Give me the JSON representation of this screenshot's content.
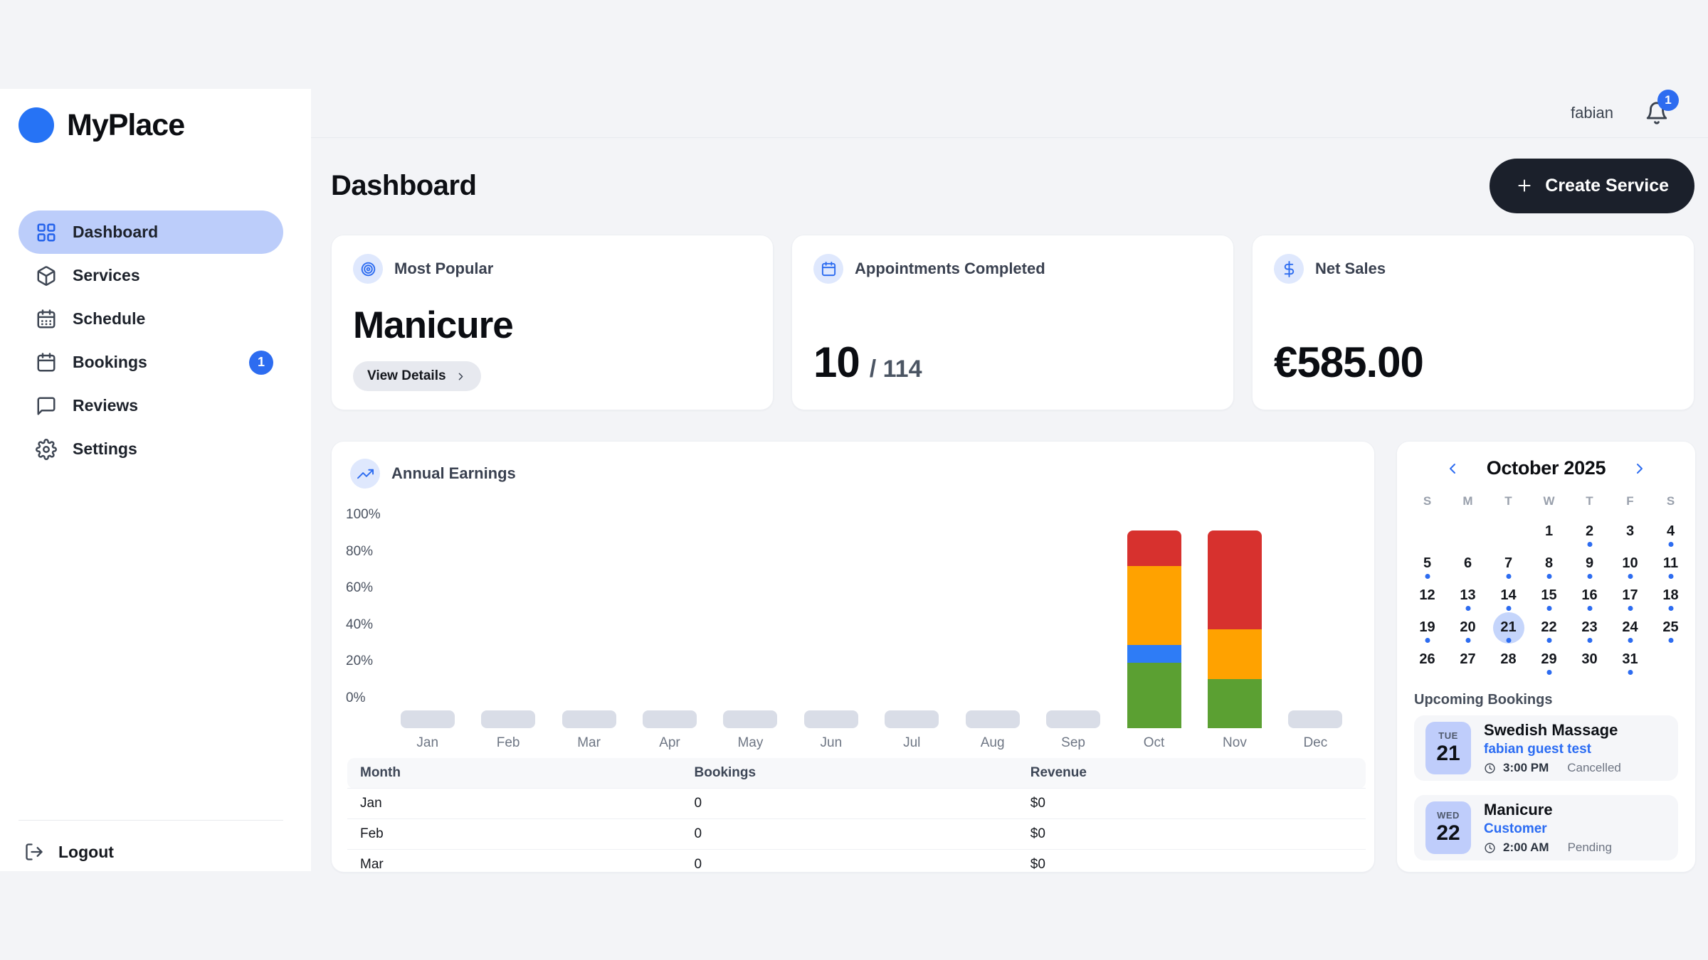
{
  "brand": {
    "name": "MyPlace"
  },
  "topbar": {
    "username": "fabian",
    "notification_count": "1"
  },
  "sidebar": {
    "items": [
      {
        "label": "Dashboard",
        "icon": "dashboard-grid",
        "active": true
      },
      {
        "label": "Services",
        "icon": "package"
      },
      {
        "label": "Schedule",
        "icon": "calendar-dots"
      },
      {
        "label": "Bookings",
        "icon": "calendar",
        "badge": "1"
      },
      {
        "label": "Reviews",
        "icon": "chat"
      },
      {
        "label": "Settings",
        "icon": "gear"
      }
    ],
    "logout_label": "Logout"
  },
  "page": {
    "title": "Dashboard",
    "create_button": "Create Service"
  },
  "stats": [
    {
      "icon": "target",
      "label": "Most Popular",
      "value": "Manicure",
      "button": "View Details"
    },
    {
      "icon": "calendar",
      "label": "Appointments Completed",
      "value": "10",
      "total": "/ 114"
    },
    {
      "icon": "dollar",
      "label": "Net Sales",
      "value": "€585.00"
    }
  ],
  "chart_data": {
    "type": "bar",
    "stacked": true,
    "title": "Annual Earnings",
    "categories": [
      "Jan",
      "Feb",
      "Mar",
      "Apr",
      "May",
      "Jun",
      "Jul",
      "Aug",
      "Sep",
      "Oct",
      "Nov",
      "Dec"
    ],
    "yticks": [
      "100%",
      "80%",
      "60%",
      "40%",
      "20%",
      "0%"
    ],
    "ylim": [
      0,
      100
    ],
    "unit": "percent share of month earnings",
    "grid": false,
    "legend": "none",
    "empty_month_stub_color": "#d9dde7",
    "series": [
      {
        "name": "green",
        "color": "#5ba032",
        "values": [
          0,
          0,
          0,
          0,
          0,
          0,
          0,
          0,
          0,
          33,
          25,
          0
        ]
      },
      {
        "name": "blue",
        "color": "#2e7cf6",
        "values": [
          0,
          0,
          0,
          0,
          0,
          0,
          0,
          0,
          0,
          9,
          0,
          0
        ]
      },
      {
        "name": "orange",
        "color": "#ffa200",
        "values": [
          0,
          0,
          0,
          0,
          0,
          0,
          0,
          0,
          0,
          40,
          25,
          0
        ]
      },
      {
        "name": "red",
        "color": "#d7312e",
        "values": [
          0,
          0,
          0,
          0,
          0,
          0,
          0,
          0,
          0,
          18,
          50,
          0
        ]
      }
    ]
  },
  "earnings_table": {
    "headers": [
      "Month",
      "Bookings",
      "Revenue"
    ],
    "rows": [
      [
        "Jan",
        "0",
        "$0"
      ],
      [
        "Feb",
        "0",
        "$0"
      ],
      [
        "Mar",
        "0",
        "$0"
      ]
    ]
  },
  "calendar": {
    "title": "October 2025",
    "weekdays": [
      "S",
      "M",
      "T",
      "W",
      "T",
      "F",
      "S"
    ],
    "leading_blanks": 3,
    "selected_day": 21,
    "days_with_dot": [
      2,
      4,
      5,
      7,
      8,
      9,
      10,
      11,
      13,
      14,
      15,
      16,
      17,
      18,
      19,
      20,
      21,
      22,
      23,
      24,
      25,
      29,
      31
    ],
    "num_days": 31
  },
  "bookings": {
    "heading": "Upcoming Bookings",
    "items": [
      {
        "weekday": "TUE",
        "day": "21",
        "title": "Swedish Massage",
        "customer": "fabian guest test",
        "time": "3:00 PM",
        "status": "Cancelled"
      },
      {
        "weekday": "WED",
        "day": "22",
        "title": "Manicure",
        "customer": "Customer",
        "time": "2:00 AM",
        "status": "Pending"
      }
    ]
  },
  "colors": {
    "accent_blue": "#2d6cf0",
    "active_pill": "#bccdfa",
    "icon_circle_bg": "#dfe8fd",
    "dark_button": "#1b202b",
    "booking_chip": "#bfcdfb",
    "page_bg": "#f3f4f7"
  }
}
